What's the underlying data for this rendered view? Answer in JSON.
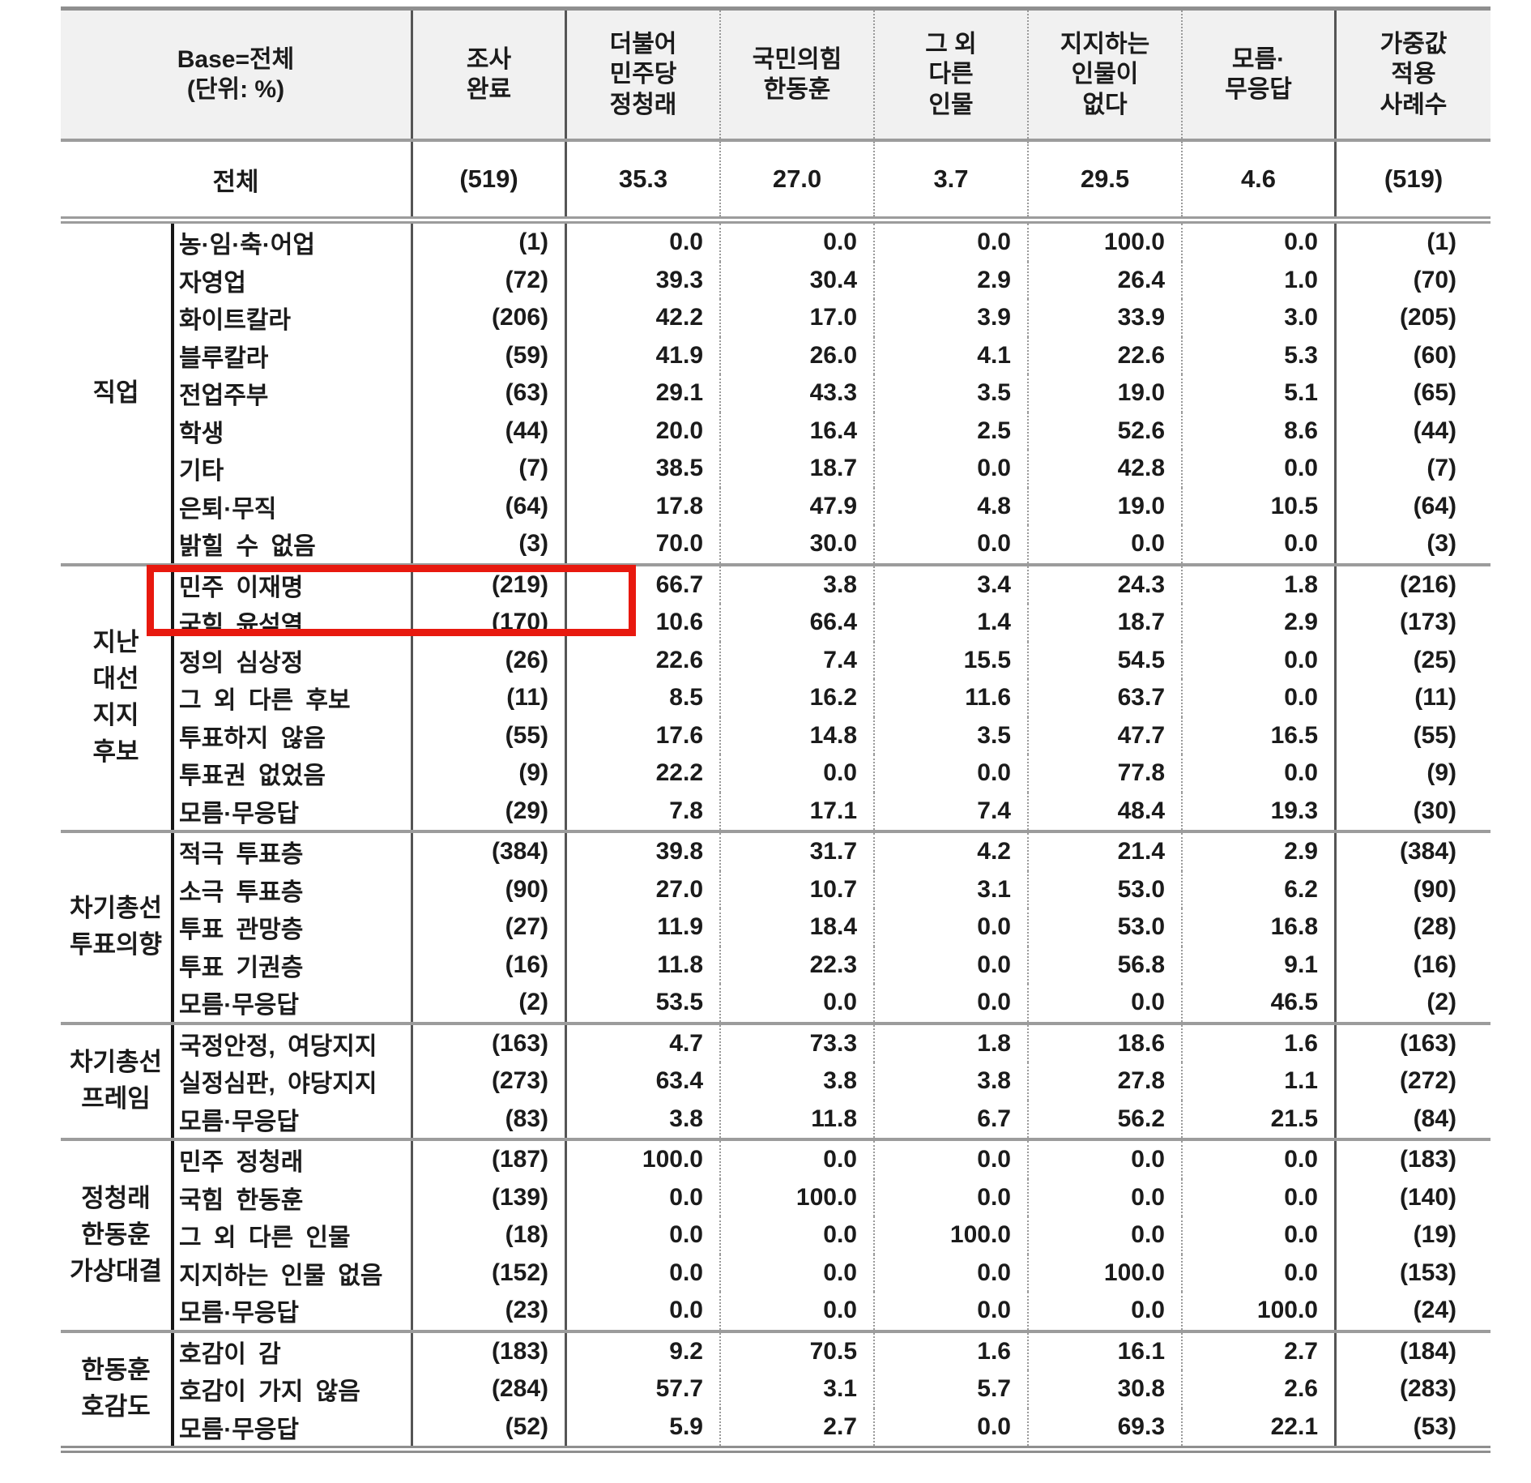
{
  "table": {
    "header": {
      "base_label": "Base=전체\n(단위: %)",
      "columns": [
        "조사\n완료",
        "더불어\n민주당\n정청래",
        "국민의힘\n한동훈",
        "그 외\n다른\n인물",
        "지지하는\n인물이\n없다",
        "모름·\n무응답",
        "가중값\n적용\n사례수"
      ]
    },
    "total_row": {
      "label": "전체",
      "values": [
        "(519)",
        "35.3",
        "27.0",
        "3.7",
        "29.5",
        "4.6",
        "(519)"
      ]
    },
    "sections": [
      {
        "group": "직업",
        "rows": [
          {
            "label": "농·임·축·어업",
            "values": [
              "(1)",
              "0.0",
              "0.0",
              "0.0",
              "100.0",
              "0.0",
              "(1)"
            ]
          },
          {
            "label": "자영업",
            "values": [
              "(72)",
              "39.3",
              "30.4",
              "2.9",
              "26.4",
              "1.0",
              "(70)"
            ]
          },
          {
            "label": "화이트칼라",
            "values": [
              "(206)",
              "42.2",
              "17.0",
              "3.9",
              "33.9",
              "3.0",
              "(205)"
            ]
          },
          {
            "label": "블루칼라",
            "values": [
              "(59)",
              "41.9",
              "26.0",
              "4.1",
              "22.6",
              "5.3",
              "(60)"
            ]
          },
          {
            "label": "전업주부",
            "values": [
              "(63)",
              "29.1",
              "43.3",
              "3.5",
              "19.0",
              "5.1",
              "(65)"
            ]
          },
          {
            "label": "학생",
            "values": [
              "(44)",
              "20.0",
              "16.4",
              "2.5",
              "52.6",
              "8.6",
              "(44)"
            ]
          },
          {
            "label": "기타",
            "values": [
              "(7)",
              "38.5",
              "18.7",
              "0.0",
              "42.8",
              "0.0",
              "(7)"
            ]
          },
          {
            "label": "은퇴·무직",
            "values": [
              "(64)",
              "17.8",
              "47.9",
              "4.8",
              "19.0",
              "10.5",
              "(64)"
            ]
          },
          {
            "label": "밝힐 수 없음",
            "values": [
              "(3)",
              "70.0",
              "30.0",
              "0.0",
              "0.0",
              "0.0",
              "(3)"
            ]
          }
        ]
      },
      {
        "group": "지난\n대선\n지지\n후보",
        "rows": [
          {
            "label": "민주 이재명",
            "values": [
              "(219)",
              "66.7",
              "3.8",
              "3.4",
              "24.3",
              "1.8",
              "(216)"
            ]
          },
          {
            "label": "국힘 윤석열",
            "values": [
              "(170)",
              "10.6",
              "66.4",
              "1.4",
              "18.7",
              "2.9",
              "(173)"
            ]
          },
          {
            "label": "정의 심상정",
            "values": [
              "(26)",
              "22.6",
              "7.4",
              "15.5",
              "54.5",
              "0.0",
              "(25)"
            ]
          },
          {
            "label": "그 외 다른 후보",
            "values": [
              "(11)",
              "8.5",
              "16.2",
              "11.6",
              "63.7",
              "0.0",
              "(11)"
            ]
          },
          {
            "label": "투표하지 않음",
            "values": [
              "(55)",
              "17.6",
              "14.8",
              "3.5",
              "47.7",
              "16.5",
              "(55)"
            ]
          },
          {
            "label": "투표권 없었음",
            "values": [
              "(9)",
              "22.2",
              "0.0",
              "0.0",
              "77.8",
              "0.0",
              "(9)"
            ]
          },
          {
            "label": "모름·무응답",
            "values": [
              "(29)",
              "7.8",
              "17.1",
              "7.4",
              "48.4",
              "19.3",
              "(30)"
            ]
          }
        ]
      },
      {
        "group": "차기총선\n투표의향",
        "rows": [
          {
            "label": "적극 투표층",
            "values": [
              "(384)",
              "39.8",
              "31.7",
              "4.2",
              "21.4",
              "2.9",
              "(384)"
            ]
          },
          {
            "label": "소극 투표층",
            "values": [
              "(90)",
              "27.0",
              "10.7",
              "3.1",
              "53.0",
              "6.2",
              "(90)"
            ]
          },
          {
            "label": "투표 관망층",
            "values": [
              "(27)",
              "11.9",
              "18.4",
              "0.0",
              "53.0",
              "16.8",
              "(28)"
            ]
          },
          {
            "label": "투표 기권층",
            "values": [
              "(16)",
              "11.8",
              "22.3",
              "0.0",
              "56.8",
              "9.1",
              "(16)"
            ]
          },
          {
            "label": "모름·무응답",
            "values": [
              "(2)",
              "53.5",
              "0.0",
              "0.0",
              "0.0",
              "46.5",
              "(2)"
            ]
          }
        ]
      },
      {
        "group": "차기총선\n프레임",
        "rows": [
          {
            "label": "국정안정, 여당지지",
            "values": [
              "(163)",
              "4.7",
              "73.3",
              "1.8",
              "18.6",
              "1.6",
              "(163)"
            ]
          },
          {
            "label": "실정심판, 야당지지",
            "values": [
              "(273)",
              "63.4",
              "3.8",
              "3.8",
              "27.8",
              "1.1",
              "(272)"
            ]
          },
          {
            "label": "모름·무응답",
            "values": [
              "(83)",
              "3.8",
              "11.8",
              "6.7",
              "56.2",
              "21.5",
              "(84)"
            ]
          }
        ]
      },
      {
        "group": "정청래\n한동훈\n가상대결",
        "rows": [
          {
            "label": "민주 정청래",
            "values": [
              "(187)",
              "100.0",
              "0.0",
              "0.0",
              "0.0",
              "0.0",
              "(183)"
            ]
          },
          {
            "label": "국힘 한동훈",
            "values": [
              "(139)",
              "0.0",
              "100.0",
              "0.0",
              "0.0",
              "0.0",
              "(140)"
            ]
          },
          {
            "label": "그 외 다른 인물",
            "values": [
              "(18)",
              "0.0",
              "0.0",
              "100.0",
              "0.0",
              "0.0",
              "(19)"
            ]
          },
          {
            "label": "지지하는 인물 없음",
            "values": [
              "(152)",
              "0.0",
              "0.0",
              "0.0",
              "100.0",
              "0.0",
              "(153)"
            ]
          },
          {
            "label": "모름·무응답",
            "values": [
              "(23)",
              "0.0",
              "0.0",
              "0.0",
              "0.0",
              "100.0",
              "(24)"
            ]
          }
        ]
      },
      {
        "group": "한동훈\n호감도",
        "rows": [
          {
            "label": "호감이 감",
            "values": [
              "(183)",
              "9.2",
              "70.5",
              "1.6",
              "16.1",
              "2.7",
              "(184)"
            ]
          },
          {
            "label": "호감이 가지 않음",
            "values": [
              "(284)",
              "57.7",
              "3.1",
              "5.7",
              "30.8",
              "2.6",
              "(283)"
            ]
          },
          {
            "label": "모름·무응답",
            "values": [
              "(52)",
              "5.9",
              "2.7",
              "0.0",
              "69.3",
              "22.1",
              "(53)"
            ]
          }
        ]
      }
    ]
  },
  "annotation": {
    "highlight_color": "#e8190f",
    "highlighted_rows": [
      "민주 이재명",
      "국힘 윤석열"
    ]
  },
  "colors": {
    "header_bg": "#f1f1f1",
    "text": "#1b1b1b",
    "grid_gray": "#9c9c9c",
    "grid_dark": "#555555",
    "grid_black": "#161616"
  }
}
